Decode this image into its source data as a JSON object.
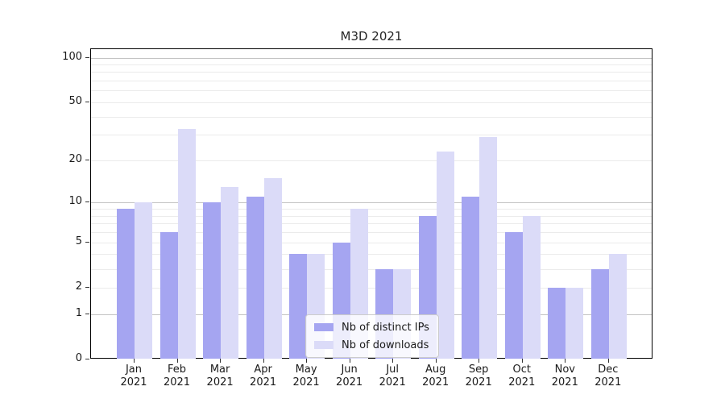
{
  "chart_data": {
    "type": "bar",
    "title": "M3D 2021",
    "categories": [
      "Jan",
      "Feb",
      "Mar",
      "Apr",
      "May",
      "Jun",
      "Jul",
      "Aug",
      "Sep",
      "Oct",
      "Nov",
      "Dec"
    ],
    "x_tick_year": "2021",
    "series": [
      {
        "name": "Nb of distinct IPs",
        "color": "#a5a5f1",
        "values": [
          9,
          6,
          10,
          11,
          4,
          5,
          3,
          8,
          11,
          6,
          2,
          3
        ]
      },
      {
        "name": "Nb of downloads",
        "color": "#dbdbf8",
        "values": [
          10,
          33,
          13,
          15,
          4,
          9,
          3,
          23,
          29,
          8,
          2,
          4
        ]
      }
    ],
    "yscale": "log1p",
    "yticks": [
      0,
      1,
      2,
      5,
      10,
      20,
      50,
      100
    ],
    "major_gridlines": [
      1,
      10,
      100
    ],
    "minor_gridlines": [
      2,
      3,
      4,
      5,
      6,
      7,
      8,
      9,
      20,
      30,
      40,
      50,
      60,
      70,
      80,
      90
    ],
    "ylim": [
      0,
      114
    ],
    "grid": "both",
    "legend_position": "lower center",
    "colors": {
      "series_ips": "#a5a5f1",
      "series_downloads": "#dbdbf8",
      "major_grid": "#c3c3c3",
      "minor_grid": "#ebebeb",
      "axis_line": "#000000",
      "text": "#1a1a1a"
    }
  }
}
